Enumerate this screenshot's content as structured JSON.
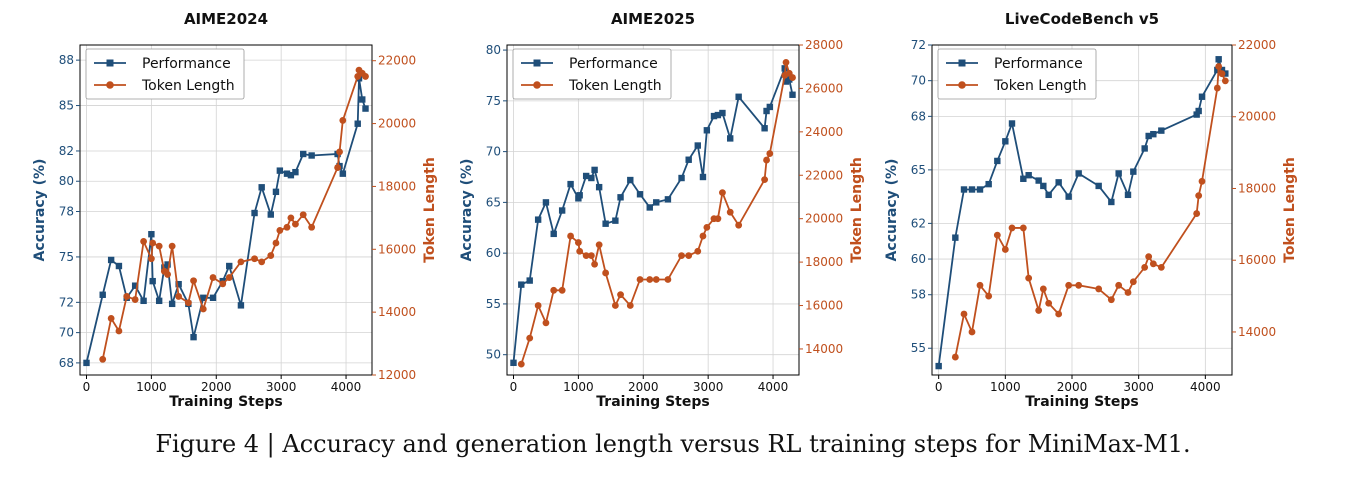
{
  "colors": {
    "performance": "#1f4e79",
    "token_length": "#c0501e",
    "grid": "#d3d3d3",
    "axis": "#000000"
  },
  "caption": "Figure 4 | Accuracy and generation length versus RL training steps for MiniMax-M1.",
  "chart_data": [
    {
      "type": "line",
      "title": "AIME2024",
      "xlabel": "Training Steps",
      "ylabel": "Accuracy (%)",
      "y2label": "Token Length",
      "xlim": [
        -100,
        4400
      ],
      "ylim": [
        67.2,
        89.0
      ],
      "y2lim": [
        12000,
        22500
      ],
      "xticks": [
        0,
        1000,
        2000,
        3000,
        4000
      ],
      "yticks": [
        68,
        70,
        72,
        75,
        78,
        80,
        82,
        85,
        88
      ],
      "y2ticks": [
        12000,
        14000,
        16000,
        18000,
        20000,
        22000
      ],
      "grid": true,
      "legend": "top-left",
      "series": [
        {
          "name": "Performance",
          "axis": "left",
          "marker": "square",
          "x": [
            0,
            250,
            380,
            500,
            620,
            750,
            880,
            1000,
            1020,
            1120,
            1200,
            1250,
            1320,
            1420,
            1570,
            1650,
            1800,
            1950,
            2100,
            2200,
            2380,
            2590,
            2700,
            2840,
            2920,
            2980,
            3090,
            3150,
            3220,
            3340,
            3470,
            3870,
            3900,
            3950,
            4180,
            4200,
            4250,
            4300
          ],
          "values": [
            68.0,
            72.5,
            74.8,
            74.4,
            72.3,
            73.1,
            72.1,
            76.5,
            73.4,
            72.1,
            74.3,
            74.5,
            71.9,
            73.2,
            71.9,
            69.7,
            72.3,
            72.3,
            73.4,
            74.4,
            71.8,
            77.9,
            79.6,
            77.8,
            79.3,
            80.7,
            80.5,
            80.4,
            80.6,
            81.8,
            81.7,
            81.8,
            81.0,
            80.5,
            83.8,
            86.8,
            85.4,
            84.8
          ]
        },
        {
          "name": "Token Length",
          "axis": "right",
          "marker": "circle",
          "x": [
            250,
            380,
            500,
            620,
            750,
            880,
            1000,
            1020,
            1120,
            1200,
            1250,
            1320,
            1420,
            1570,
            1650,
            1800,
            1950,
            2100,
            2200,
            2380,
            2590,
            2700,
            2840,
            2920,
            2980,
            3090,
            3150,
            3220,
            3340,
            3470,
            3870,
            3900,
            3950,
            4180,
            4200,
            4250,
            4300
          ],
          "values": [
            12500,
            13800,
            13400,
            14500,
            14400,
            16250,
            15700,
            16200,
            16100,
            15300,
            15200,
            16100,
            14500,
            14300,
            15000,
            14100,
            15100,
            14900,
            15100,
            15600,
            15700,
            15600,
            15800,
            16200,
            16600,
            16700,
            17000,
            16800,
            17100,
            16700,
            18600,
            19100,
            20100,
            21500,
            21700,
            21600,
            21500
          ]
        }
      ]
    },
    {
      "type": "line",
      "title": "AIME2025",
      "xlabel": "Training Steps",
      "ylabel": "Accuracy (%)",
      "y2label": "Token Length",
      "xlim": [
        -100,
        4400
      ],
      "ylim": [
        48,
        80.5
      ],
      "y2lim": [
        12800,
        28000
      ],
      "xticks": [
        0,
        1000,
        2000,
        3000,
        4000
      ],
      "yticks": [
        50,
        55,
        60,
        65,
        70,
        75,
        80
      ],
      "y2ticks": [
        14000,
        16000,
        18000,
        20000,
        22000,
        24000,
        26000,
        28000
      ],
      "grid": true,
      "legend": "top-left",
      "series": [
        {
          "name": "Performance",
          "axis": "left",
          "marker": "square",
          "x": [
            0,
            120,
            250,
            380,
            500,
            620,
            750,
            880,
            1000,
            1020,
            1120,
            1200,
            1250,
            1320,
            1420,
            1570,
            1650,
            1800,
            1950,
            2100,
            2200,
            2380,
            2590,
            2700,
            2840,
            2920,
            2980,
            3090,
            3150,
            3220,
            3340,
            3470,
            3870,
            3900,
            3950,
            4180,
            4200,
            4250,
            4300
          ],
          "values": [
            49.2,
            56.9,
            57.3,
            63.3,
            65.0,
            61.9,
            64.2,
            66.8,
            65.4,
            65.7,
            67.6,
            67.4,
            68.2,
            66.5,
            62.9,
            63.2,
            65.5,
            67.2,
            65.8,
            64.5,
            65.0,
            65.3,
            67.4,
            69.2,
            70.6,
            67.5,
            72.1,
            73.5,
            73.6,
            73.8,
            71.3,
            75.4,
            72.3,
            74.0,
            74.4,
            78.2,
            76.9,
            77.1,
            75.6
          ]
        },
        {
          "name": "Token Length",
          "axis": "right",
          "marker": "circle",
          "x": [
            120,
            250,
            380,
            500,
            620,
            750,
            880,
            1000,
            1020,
            1120,
            1200,
            1250,
            1320,
            1420,
            1570,
            1650,
            1800,
            1950,
            2100,
            2200,
            2380,
            2590,
            2700,
            2840,
            2920,
            2980,
            3090,
            3150,
            3220,
            3340,
            3470,
            3870,
            3900,
            3950,
            4180,
            4200,
            4250,
            4300
          ],
          "values": [
            13300,
            14500,
            16000,
            15200,
            16700,
            16700,
            19200,
            18900,
            18500,
            18300,
            18300,
            17900,
            18800,
            17500,
            16000,
            16500,
            16000,
            17200,
            17200,
            17200,
            17200,
            18300,
            18300,
            18500,
            19200,
            19600,
            20000,
            20000,
            21200,
            20300,
            19700,
            21800,
            22700,
            23000,
            26600,
            27200,
            26700,
            26500
          ]
        }
      ]
    },
    {
      "type": "line",
      "title": "LiveCodeBench v5",
      "xlabel": "Training Steps",
      "ylabel": "Accuracy (%)",
      "y2label": "Token Length",
      "xlim": [
        -100,
        4400
      ],
      "ylim": [
        53.5,
        72
      ],
      "y2lim": [
        12800,
        22000
      ],
      "xticks": [
        0,
        1000,
        2000,
        3000,
        4000
      ],
      "yticks": [
        55,
        58,
        60,
        62,
        65,
        68,
        70,
        72
      ],
      "y2ticks": [
        14000,
        16000,
        18000,
        20000,
        22000
      ],
      "grid": true,
      "legend": "top-left",
      "series": [
        {
          "name": "Performance",
          "axis": "left",
          "marker": "square",
          "x": [
            0,
            250,
            380,
            500,
            620,
            750,
            880,
            1000,
            1100,
            1270,
            1350,
            1500,
            1570,
            1650,
            1800,
            1950,
            2100,
            2400,
            2590,
            2700,
            2840,
            2920,
            3090,
            3150,
            3220,
            3340,
            3870,
            3900,
            3950,
            4180,
            4200,
            4250,
            4300
          ],
          "values": [
            54.0,
            61.2,
            63.9,
            63.9,
            63.9,
            64.2,
            65.5,
            66.6,
            67.6,
            64.5,
            64.7,
            64.4,
            64.1,
            63.6,
            64.3,
            63.5,
            64.8,
            64.1,
            63.2,
            64.8,
            63.6,
            64.9,
            66.2,
            66.9,
            67.0,
            67.2,
            68.1,
            68.3,
            69.1,
            70.6,
            71.2,
            70.6,
            70.4
          ]
        },
        {
          "name": "Token Length",
          "axis": "right",
          "marker": "circle",
          "x": [
            250,
            380,
            500,
            620,
            750,
            880,
            1000,
            1100,
            1270,
            1350,
            1500,
            1570,
            1650,
            1800,
            1950,
            2100,
            2400,
            2590,
            2700,
            2840,
            2920,
            3090,
            3150,
            3220,
            3340,
            3870,
            3900,
            3950,
            4180,
            4200,
            4250,
            4300
          ],
          "values": [
            13300,
            14500,
            14000,
            15300,
            15000,
            16700,
            16300,
            16900,
            16900,
            15500,
            14600,
            15200,
            14800,
            14500,
            15300,
            15300,
            15200,
            14900,
            15300,
            15100,
            15400,
            15800,
            16100,
            15900,
            15800,
            17300,
            17800,
            18200,
            20800,
            21400,
            21200,
            21000
          ]
        }
      ]
    }
  ]
}
